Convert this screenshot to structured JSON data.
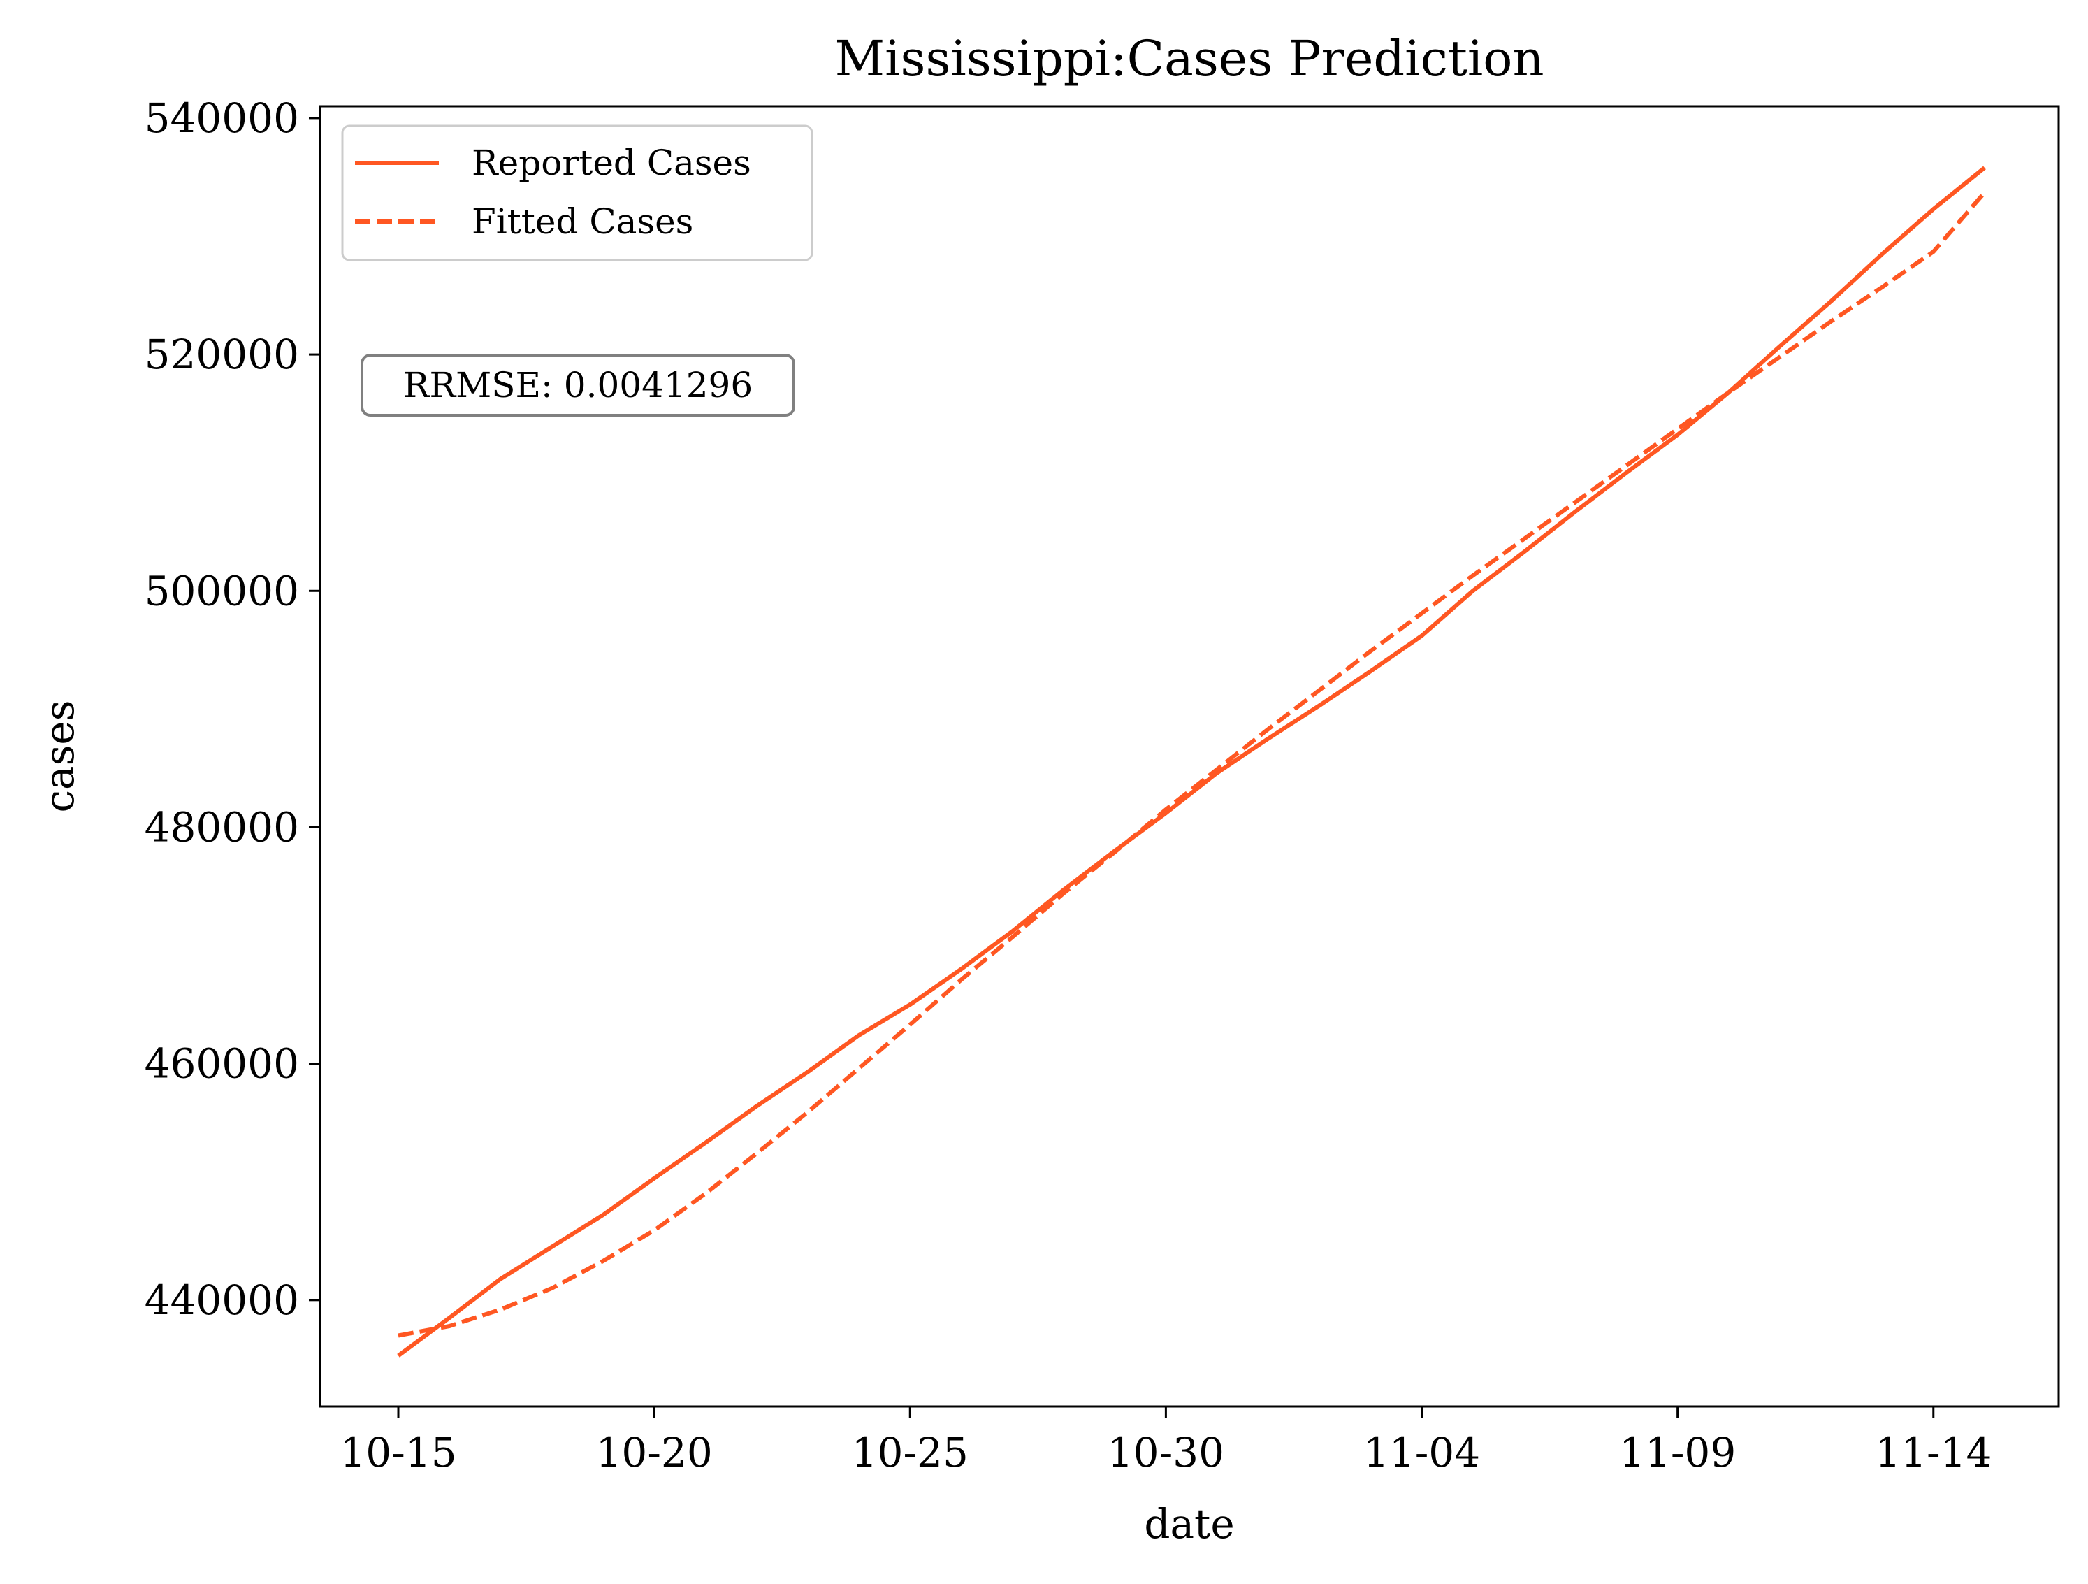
{
  "chart_data": {
    "type": "line",
    "title": "Mississippi:Cases Prediction",
    "xlabel": "date",
    "ylabel": "cases",
    "x": [
      "10-15",
      "10-16",
      "10-17",
      "10-18",
      "10-19",
      "10-20",
      "10-21",
      "10-22",
      "10-23",
      "10-24",
      "10-25",
      "10-26",
      "10-27",
      "10-28",
      "10-29",
      "10-30",
      "10-31",
      "11-01",
      "11-02",
      "11-03",
      "11-04",
      "11-05",
      "11-06",
      "11-07",
      "11-08",
      "11-09",
      "11-10",
      "11-11",
      "11-12",
      "11-13",
      "11-14",
      "11-15"
    ],
    "xticks": [
      "10-15",
      "10-20",
      "10-25",
      "10-30",
      "11-04",
      "11-09",
      "11-14"
    ],
    "yticks": [
      440000,
      460000,
      480000,
      500000,
      520000,
      540000
    ],
    "ylim": [
      431000,
      541000
    ],
    "grid": false,
    "legend_position": "upper-left",
    "series": [
      {
        "name": "Reported Cases",
        "style": "solid",
        "color": "#ff5722",
        "values": [
          435300,
          438500,
          441800,
          444500,
          447200,
          450300,
          453300,
          456400,
          459300,
          462400,
          465000,
          468000,
          471200,
          474700,
          478000,
          481200,
          484600,
          487500,
          490300,
          493200,
          496200,
          500000,
          503300,
          506700,
          510000,
          513200,
          516800,
          520700,
          524500,
          528500,
          532300,
          535800
        ]
      },
      {
        "name": "Fitted Cases",
        "style": "dashed",
        "color": "#ff5722",
        "values": [
          437000,
          437800,
          439200,
          441000,
          443300,
          445900,
          449000,
          452400,
          455900,
          459600,
          463300,
          467100,
          470700,
          474400,
          477900,
          481500,
          484900,
          488300,
          491600,
          494900,
          498100,
          501300,
          504400,
          507500,
          510600,
          513700,
          516800,
          519800,
          522800,
          525700,
          528700,
          533700
        ]
      }
    ],
    "annotation": "RRMSE: 0.0041296"
  }
}
